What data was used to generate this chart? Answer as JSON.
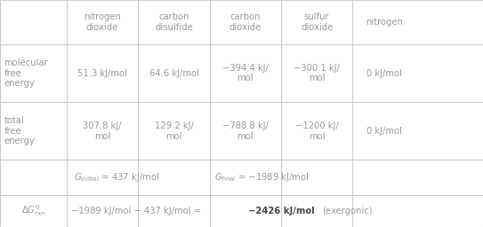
{
  "col_headers": [
    "",
    "nitrogen\ndioxide",
    "carbon\ndisulfide",
    "carbon\ndioxide",
    "sulfur\ndioxide",
    "nitrogen"
  ],
  "row1_label": "molecular\nfree\nenergy",
  "row1_values": [
    "51.3 kJ/mol",
    "64.6 kJ/mol",
    "−394.4 kJ/\nmol",
    "−300.1 kJ/\nmol",
    "0 kJ/mol"
  ],
  "row2_label": "total\nfree\nenergy",
  "row2_values": [
    "307.8 kJ/\nmol",
    "129.2 kJ/\nmol",
    "−788.8 kJ/\nmol",
    "−1200 kJ/\nmol",
    "0 kJ/mol"
  ],
  "text_color": "#999999",
  "bold_color": "#444444",
  "border_color": "#cccccc",
  "bg_color": "#ffffff",
  "fontsize": 7.2,
  "fig_width": 5.43,
  "fig_height": 2.56,
  "dpi": 100
}
